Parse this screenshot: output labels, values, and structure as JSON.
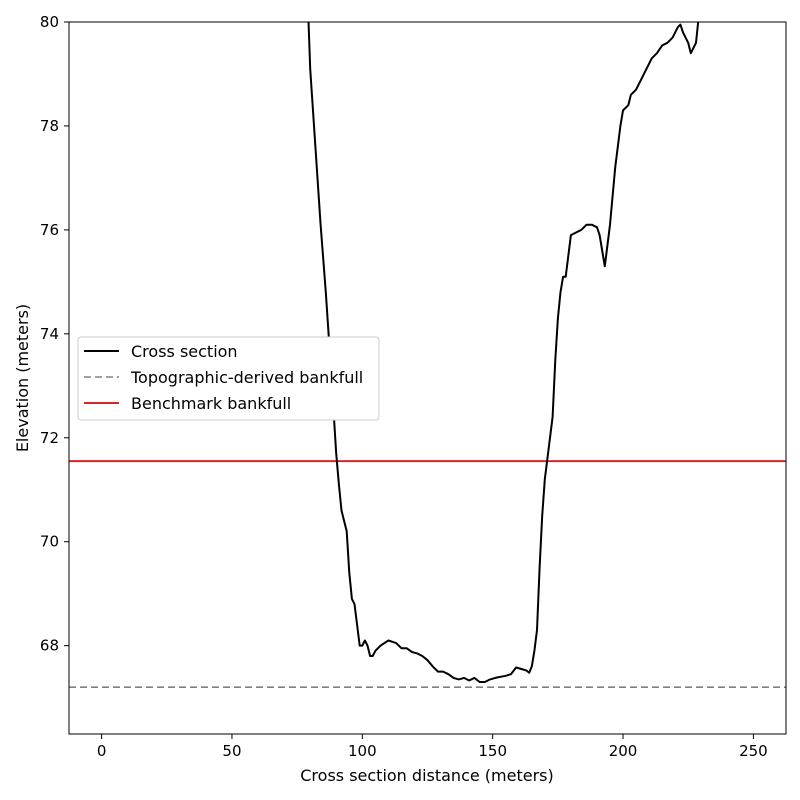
{
  "chart_data": {
    "type": "line",
    "title": "",
    "xlabel": "Cross section distance (meters)",
    "ylabel": "Elevation (meters)",
    "xlim": [
      -12.5,
      262.5
    ],
    "ylim": [
      66.3,
      80
    ],
    "x_ticks": [
      0,
      50,
      100,
      150,
      200,
      250
    ],
    "y_ticks": [
      68,
      70,
      72,
      74,
      76,
      78,
      80
    ],
    "grid": false,
    "legend_position": "center-left",
    "series": [
      {
        "name": "Cross section",
        "color": "#000000",
        "style": "solid",
        "points": [
          [
            79,
            80.5
          ],
          [
            80,
            79.1
          ],
          [
            82,
            77.6
          ],
          [
            84,
            76.1
          ],
          [
            86,
            74.8
          ],
          [
            88,
            73.3
          ],
          [
            89,
            72.5
          ],
          [
            90,
            71.7
          ],
          [
            91,
            71.1
          ],
          [
            92,
            70.6
          ],
          [
            93,
            70.4
          ],
          [
            94,
            70.2
          ],
          [
            95,
            69.4
          ],
          [
            96,
            68.9
          ],
          [
            97,
            68.8
          ],
          [
            98,
            68.4
          ],
          [
            99,
            68.0
          ],
          [
            100,
            68.0
          ],
          [
            101,
            68.1
          ],
          [
            102,
            68.0
          ],
          [
            103,
            67.8
          ],
          [
            104,
            67.8
          ],
          [
            105,
            67.9
          ],
          [
            107,
            68.0
          ],
          [
            110,
            68.1
          ],
          [
            113,
            68.05
          ],
          [
            115,
            67.95
          ],
          [
            117,
            67.95
          ],
          [
            119,
            67.88
          ],
          [
            121,
            67.85
          ],
          [
            123,
            67.8
          ],
          [
            125,
            67.72
          ],
          [
            127,
            67.6
          ],
          [
            129,
            67.5
          ],
          [
            131,
            67.5
          ],
          [
            133,
            67.45
          ],
          [
            135,
            67.38
          ],
          [
            137,
            67.35
          ],
          [
            139,
            67.38
          ],
          [
            141,
            67.33
          ],
          [
            143,
            67.38
          ],
          [
            145,
            67.3
          ],
          [
            147,
            67.3
          ],
          [
            149,
            67.35
          ],
          [
            151,
            67.38
          ],
          [
            153,
            67.4
          ],
          [
            155,
            67.42
          ],
          [
            157,
            67.45
          ],
          [
            159,
            67.58
          ],
          [
            161,
            67.55
          ],
          [
            163,
            67.52
          ],
          [
            164,
            67.48
          ],
          [
            165,
            67.6
          ],
          [
            166,
            67.9
          ],
          [
            167,
            68.3
          ],
          [
            168,
            69.5
          ],
          [
            169,
            70.5
          ],
          [
            170,
            71.2
          ],
          [
            171,
            71.6
          ],
          [
            172,
            72.0
          ],
          [
            173,
            72.4
          ],
          [
            174,
            73.5
          ],
          [
            175,
            74.3
          ],
          [
            176,
            74.8
          ],
          [
            177,
            75.1
          ],
          [
            178,
            75.1
          ],
          [
            179,
            75.5
          ],
          [
            180,
            75.9
          ],
          [
            182,
            75.95
          ],
          [
            184,
            76.0
          ],
          [
            186,
            76.1
          ],
          [
            188,
            76.1
          ],
          [
            190,
            76.05
          ],
          [
            191,
            75.9
          ],
          [
            192,
            75.6
          ],
          [
            193,
            75.3
          ],
          [
            195,
            76.1
          ],
          [
            197,
            77.2
          ],
          [
            199,
            78.0
          ],
          [
            200,
            78.3
          ],
          [
            202,
            78.4
          ],
          [
            203,
            78.6
          ],
          [
            205,
            78.7
          ],
          [
            207,
            78.9
          ],
          [
            209,
            79.1
          ],
          [
            211,
            79.3
          ],
          [
            213,
            79.4
          ],
          [
            215,
            79.55
          ],
          [
            217,
            79.6
          ],
          [
            219,
            79.7
          ],
          [
            221,
            79.9
          ],
          [
            222,
            79.95
          ],
          [
            223,
            79.8
          ],
          [
            225,
            79.6
          ],
          [
            226,
            79.4
          ],
          [
            228,
            79.6
          ],
          [
            229,
            80.1
          ]
        ]
      },
      {
        "name": "Topographic-derived bankfull",
        "color": "#808080",
        "style": "dashed",
        "y": 67.2
      },
      {
        "name": "Benchmark bankfull",
        "color": "#d62728",
        "style": "solid",
        "y": 71.55
      }
    ]
  }
}
